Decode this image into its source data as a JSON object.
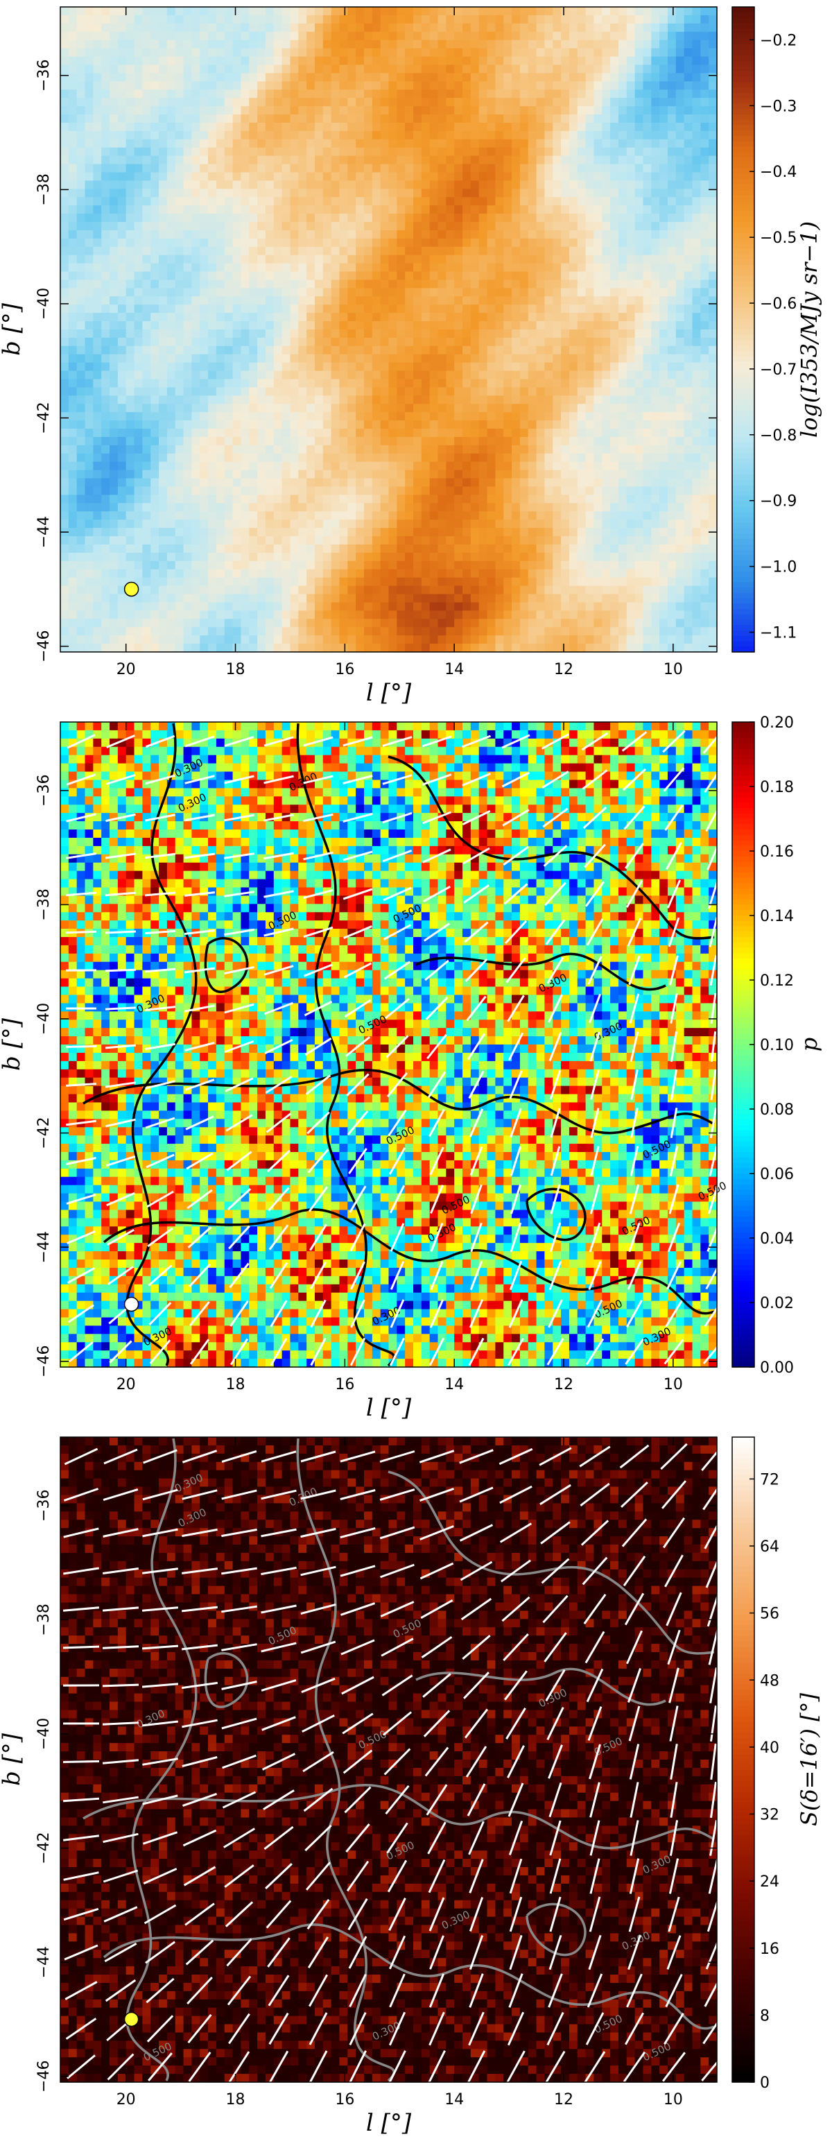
{
  "chart_data": [
    {
      "type": "heatmap",
      "xlabel": "l [°]",
      "ylabel": "b [°]",
      "xlim": [
        21.2,
        9.2
      ],
      "ylim": [
        -46.1,
        -34.8
      ],
      "xticks": [
        "20",
        "18",
        "16",
        "14",
        "12",
        "10"
      ],
      "yticks": [
        "−36",
        "−38",
        "−40",
        "−42",
        "−44",
        "−46"
      ],
      "colorbar": {
        "label": "log(I353/MJy sr−1)",
        "range": [
          -1.13,
          -0.15
        ],
        "ticks": [
          "−0.2",
          "−0.3",
          "−0.4",
          "−0.5",
          "−0.6",
          "−0.7",
          "−0.8",
          "−0.9",
          "−1.0",
          "−1.1"
        ],
        "colormap": [
          "#0a22f0",
          "#2f8ee8",
          "#67c8ef",
          "#bfe8f2",
          "#f6ecd6",
          "#f6c27a",
          "#f39a2a",
          "#de6d15",
          "#9a2a10",
          "#5a0e05"
        ]
      },
      "markers": [
        {
          "l": 19.9,
          "b": -45.0,
          "color": "#ffff33"
        }
      ]
    },
    {
      "type": "heatmap",
      "xlabel": "l [°]",
      "ylabel": "b [°]",
      "xlim": [
        21.2,
        9.2
      ],
      "ylim": [
        -46.1,
        -34.8
      ],
      "xticks": [
        "20",
        "18",
        "16",
        "14",
        "12",
        "10"
      ],
      "yticks": [
        "−36",
        "−38",
        "−40",
        "−42",
        "−44",
        "−46"
      ],
      "colorbar": {
        "label": "p",
        "range": [
          0.0,
          0.2
        ],
        "ticks": [
          "0.20",
          "0.18",
          "0.16",
          "0.14",
          "0.12",
          "0.10",
          "0.08",
          "0.06",
          "0.04",
          "0.02",
          "0.00"
        ],
        "colormap": [
          "#00007f",
          "#0000ff",
          "#007fff",
          "#00ffff",
          "#7fff7f",
          "#ffff00",
          "#ff7f00",
          "#ff0000",
          "#7f0000"
        ]
      },
      "contour_labels": [
        "0.300",
        "0.300",
        "0.300",
        "0.500",
        "0.300",
        "0.500",
        "0.500",
        "0.300",
        "0.300",
        "0.500",
        "0.500",
        "0.500",
        "0.300",
        "0.300",
        "0.500",
        "0.500",
        "0.300",
        "0.500",
        "0.300"
      ],
      "markers": [
        {
          "l": 19.9,
          "b": -45.0,
          "color": "#ffffff"
        }
      ]
    },
    {
      "type": "heatmap",
      "xlabel": "l [°]",
      "ylabel": "b [°]",
      "xlim": [
        21.2,
        9.2
      ],
      "ylim": [
        -46.1,
        -34.8
      ],
      "xticks": [
        "20",
        "18",
        "16",
        "14",
        "12",
        "10"
      ],
      "yticks": [
        "−36",
        "−38",
        "−40",
        "−42",
        "−44",
        "−46"
      ],
      "colorbar": {
        "label": "S(δ=16′) [°]",
        "range": [
          0,
          77
        ],
        "ticks": [
          "72",
          "64",
          "56",
          "48",
          "40",
          "32",
          "24",
          "16",
          "8",
          "0"
        ],
        "colormap": [
          "#000000",
          "#3a0000",
          "#7a0a00",
          "#b62a00",
          "#e05a10",
          "#f39a4a",
          "#f8c99a",
          "#ffffff"
        ]
      },
      "contour_labels": [
        "0.300",
        "0.300",
        "0.300",
        "0.500",
        "0.300",
        "0.500",
        "0.500",
        "0.300",
        "0.500",
        "0.500",
        "0.300",
        "0.300",
        "0.500",
        "0.500",
        "0.300",
        "0.500",
        "0.300"
      ],
      "markers": [
        {
          "l": 19.9,
          "b": -45.0,
          "color": "#ffff33"
        }
      ]
    }
  ]
}
